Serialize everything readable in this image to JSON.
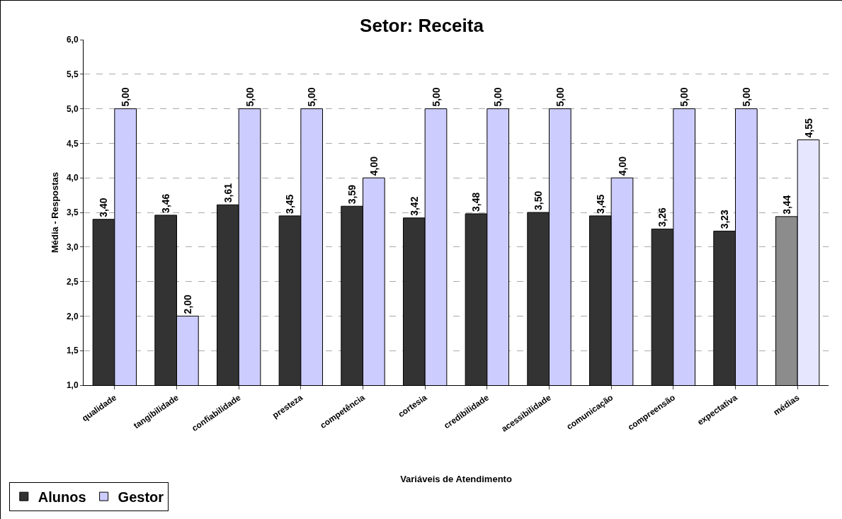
{
  "chart_data": {
    "type": "bar",
    "title": "Setor: Receita",
    "xlabel": "Variáveis de Atendimento",
    "ylabel": "Média - Respostas",
    "categories": [
      "qualidade",
      "tangibilidade",
      "confiabilidade",
      "presteza",
      "competência",
      "cortesia",
      "credibilidade",
      "acessibilidade",
      "comunicação",
      "compreensão",
      "expectativa",
      "médias"
    ],
    "series": [
      {
        "name": "Alunos",
        "color": "#333333",
        "colors": [
          null,
          null,
          null,
          null,
          null,
          null,
          null,
          null,
          null,
          null,
          null,
          "#8c8c8c"
        ],
        "values": [
          3.4,
          3.46,
          3.61,
          3.45,
          3.59,
          3.42,
          3.48,
          3.5,
          3.45,
          3.26,
          3.23,
          3.44
        ],
        "value_labels": [
          "3,40",
          "3,46",
          "3,61",
          "3,45",
          "3,59",
          "3,42",
          "3,48",
          "3,50",
          "3,45",
          "3,26",
          "3,23",
          "3,44"
        ]
      },
      {
        "name": "Gestor",
        "color": "#ccccff",
        "colors": [
          null,
          null,
          null,
          null,
          null,
          null,
          null,
          null,
          null,
          null,
          null,
          "#e6e6ff"
        ],
        "values": [
          5.0,
          2.0,
          5.0,
          5.0,
          4.0,
          5.0,
          5.0,
          5.0,
          4.0,
          5.0,
          5.0,
          4.55
        ],
        "value_labels": [
          "5,00",
          "2,00",
          "5,00",
          "5,00",
          "4,00",
          "5,00",
          "5,00",
          "5,00",
          "4,00",
          "5,00",
          "5,00",
          "4,55"
        ]
      }
    ],
    "ylim": [
      1.0,
      6.0
    ],
    "yticks": [
      {
        "value": 1.0,
        "label": "1,0"
      },
      {
        "value": 1.5,
        "label": "1,5"
      },
      {
        "value": 2.0,
        "label": "2,0"
      },
      {
        "value": 2.5,
        "label": "2,5"
      },
      {
        "value": 3.0,
        "label": "3,0"
      },
      {
        "value": 3.5,
        "label": "3,5"
      },
      {
        "value": 4.0,
        "label": "4,0"
      },
      {
        "value": 4.5,
        "label": "4,5"
      },
      {
        "value": 5.0,
        "label": "5,0"
      },
      {
        "value": 5.5,
        "label": "5,5"
      },
      {
        "value": 6.0,
        "label": "6,0"
      }
    ],
    "grid": "y",
    "legend": "bottom left"
  }
}
